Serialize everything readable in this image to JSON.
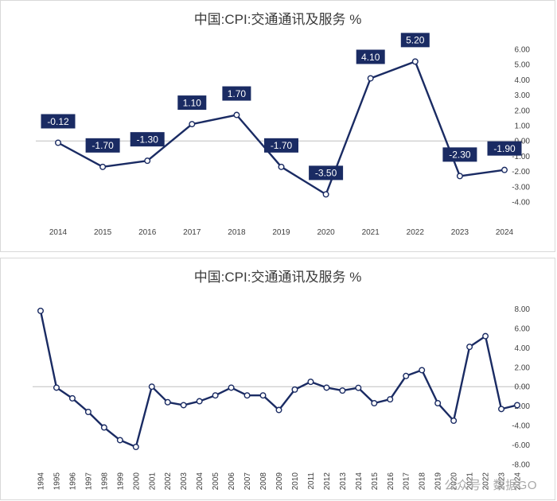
{
  "chart_data": [
    {
      "type": "line",
      "title": "中国:CPI:交通通讯及服务 %",
      "categories": [
        "2014",
        "2015",
        "2016",
        "2017",
        "2018",
        "2019",
        "2020",
        "2021",
        "2022",
        "2023",
        "2024"
      ],
      "values": [
        -0.12,
        -1.7,
        -1.3,
        1.1,
        1.7,
        -1.7,
        -3.5,
        4.1,
        5.2,
        -2.3,
        -1.9
      ],
      "data_labels": [
        "-0.12",
        "-1.70",
        "-1.30",
        "1.10",
        "1.70",
        "-1.70",
        "-3.50",
        "4.10",
        "5.20",
        "-2.30",
        "-1.90"
      ],
      "ylim": [
        -4,
        6
      ],
      "y_ticks": [
        "6.00",
        "5.00",
        "4.00",
        "3.00",
        "2.00",
        "1.00",
        "0.00",
        "-1.00",
        "-2.00",
        "-3.00",
        "-4.00"
      ],
      "grid": false,
      "axis_position": "right",
      "colors": {
        "line": "#1a2b63",
        "label_bg": "#1a2b63",
        "marker_fill": "#ffffff"
      }
    },
    {
      "type": "line",
      "title": "中国:CPI:交通通讯及服务 %",
      "categories": [
        "1994",
        "1995",
        "1996",
        "1997",
        "1998",
        "1999",
        "2000",
        "2001",
        "2002",
        "2003",
        "2004",
        "2005",
        "2006",
        "2007",
        "2008",
        "2009",
        "2010",
        "2011",
        "2012",
        "2013",
        "2014",
        "2015",
        "2016",
        "2017",
        "2018",
        "2019",
        "2020",
        "2021",
        "2022",
        "2023",
        "2024"
      ],
      "values": [
        7.8,
        -0.1,
        -1.2,
        -2.6,
        -4.2,
        -5.5,
        -6.2,
        0.0,
        -1.6,
        -1.9,
        -1.5,
        -0.9,
        -0.1,
        -0.9,
        -0.9,
        -2.4,
        -0.3,
        0.5,
        -0.1,
        -0.4,
        -0.12,
        -1.7,
        -1.3,
        1.1,
        1.7,
        -1.7,
        -3.5,
        4.1,
        5.2,
        -2.3,
        -1.9
      ],
      "ylim": [
        -8,
        10
      ],
      "y_ticks": [
        "8.00",
        "6.00",
        "4.00",
        "2.00",
        "0.00",
        "-2.00",
        "-4.00",
        "-6.00",
        "-8.00"
      ],
      "grid": false,
      "axis_position": "right",
      "colors": {
        "line": "#1a2b63",
        "marker_fill": "#ffffff"
      }
    }
  ],
  "watermark": "公众号 · 数据GO"
}
